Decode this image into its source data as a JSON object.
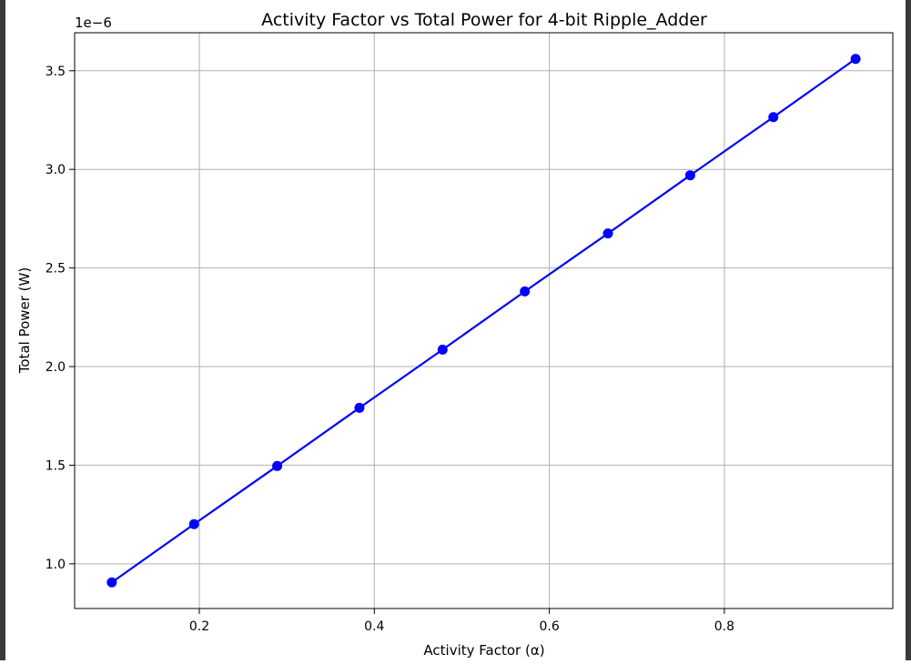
{
  "chart_data": {
    "type": "line",
    "title": "Activity Factor vs Total Power for 4-bit Ripple_Adder",
    "xlabel": "Activity Factor (α)",
    "ylabel": "Total Power (W)",
    "y_offset_label": "1e−6",
    "x": [
      0.1,
      0.194,
      0.289,
      0.383,
      0.478,
      0.572,
      0.667,
      0.761,
      0.856,
      0.95
    ],
    "series": [
      {
        "values": [
          0.906,
          1.201,
          1.496,
          1.791,
          2.086,
          2.381,
          2.675,
          2.97,
          3.265,
          3.56
        ],
        "color": "#0000ff",
        "marker": "circle"
      }
    ],
    "xlim": [
      0.0575,
      0.9925
    ],
    "ylim": [
      0.7733,
      3.6927
    ],
    "xticks": [
      0.2,
      0.4,
      0.6,
      0.8
    ],
    "xtick_labels": [
      "0.2",
      "0.4",
      "0.6",
      "0.8"
    ],
    "yticks": [
      1.0,
      1.5,
      2.0,
      2.5,
      3.0,
      3.5
    ],
    "ytick_labels": [
      "1.0",
      "1.5",
      "2.0",
      "2.5",
      "3.0",
      "3.5"
    ],
    "grid": true
  }
}
